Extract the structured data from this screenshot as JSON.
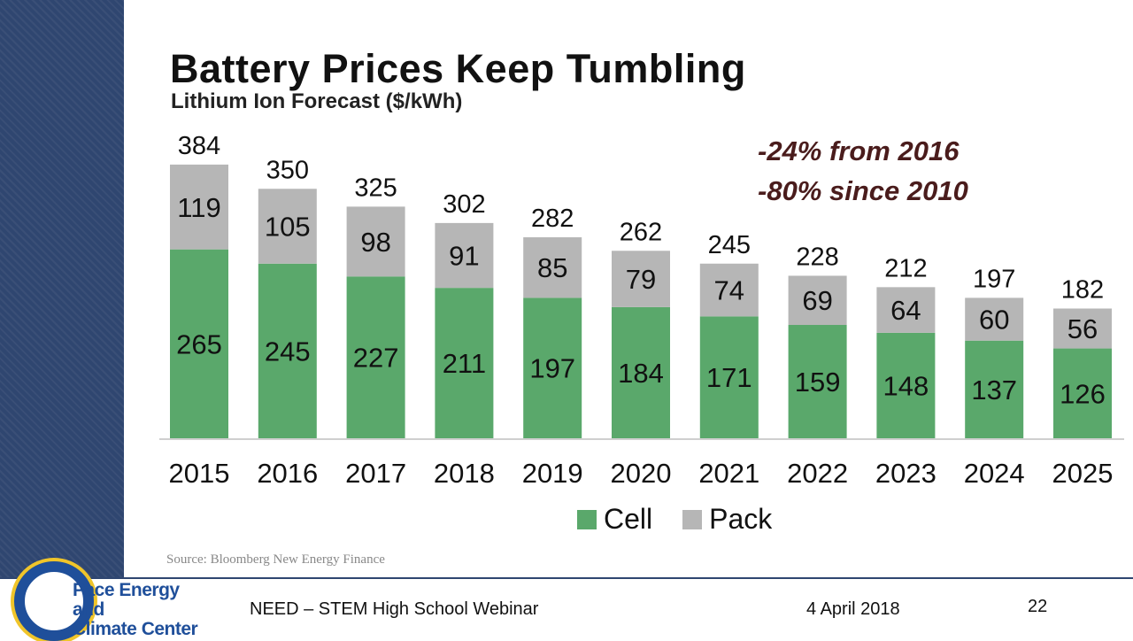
{
  "slide": {
    "title": "Battery Prices Keep Tumbling",
    "subtitle": "Lithium Ion Forecast ($/kWh)",
    "annotations": [
      "-24% from 2016",
      "-80% since 2010"
    ],
    "source": "Source: Bloomberg New Energy Finance"
  },
  "footer": {
    "logo_line1": "Pace Energy and",
    "logo_line2": "Climate Center",
    "webinar": "NEED – STEM High School Webinar",
    "date": "4 April 2018",
    "page": "22"
  },
  "colors": {
    "cell": "#5aa86b",
    "pack": "#b6b6b6",
    "sidebar": "#2f4670",
    "annotation": "#4a1c1c"
  },
  "chart_data": {
    "type": "bar",
    "stacked": true,
    "title": "Battery Prices Keep Tumbling",
    "subtitle": "Lithium Ion Forecast ($/kWh)",
    "categories": [
      "2015",
      "2016",
      "2017",
      "2018",
      "2019",
      "2020",
      "2021",
      "2022",
      "2023",
      "2024",
      "2025"
    ],
    "series": [
      {
        "name": "Cell",
        "values": [
          265,
          245,
          227,
          211,
          197,
          184,
          171,
          159,
          148,
          137,
          126
        ]
      },
      {
        "name": "Pack",
        "values": [
          119,
          105,
          98,
          91,
          85,
          79,
          74,
          69,
          64,
          60,
          56
        ]
      }
    ],
    "totals": [
      384,
      350,
      325,
      302,
      282,
      262,
      245,
      228,
      212,
      197,
      182
    ],
    "legend": "bottom",
    "grid": false
  }
}
